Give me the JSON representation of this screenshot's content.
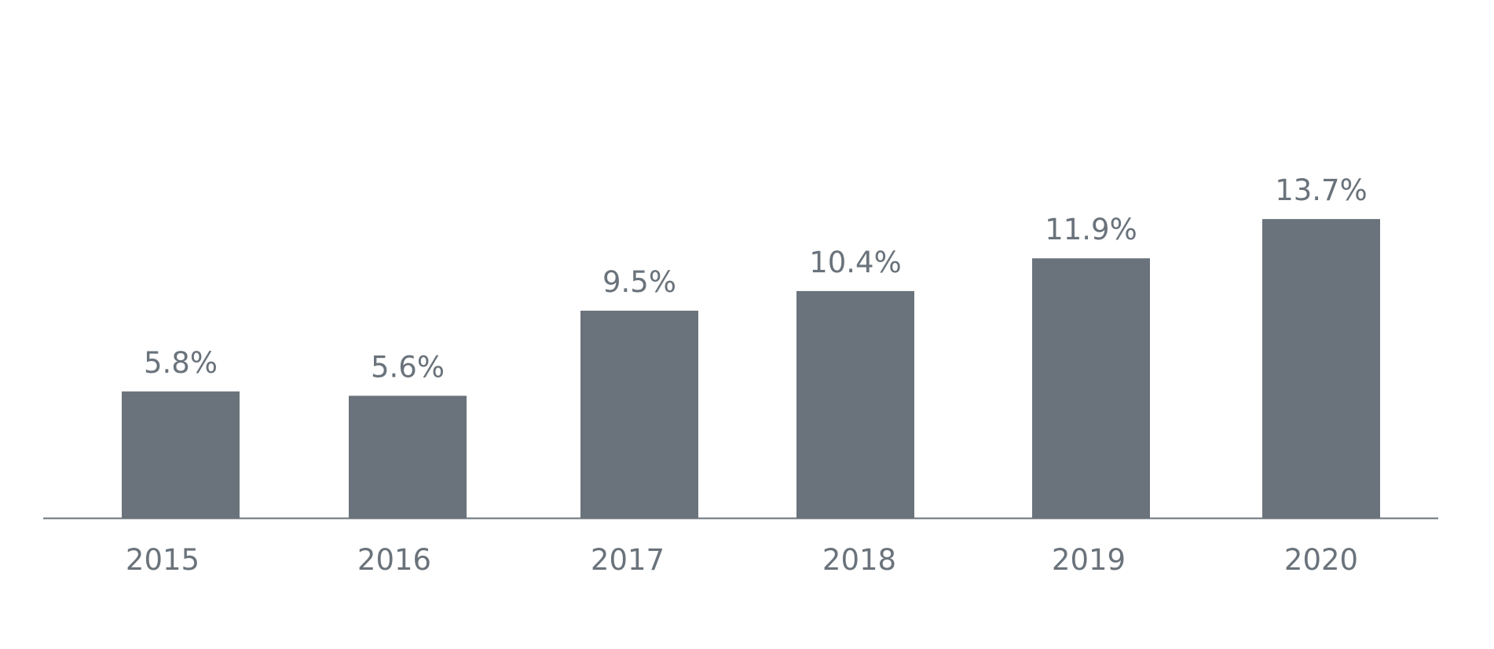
{
  "chart_data": {
    "type": "bar",
    "title": "",
    "xlabel": "",
    "ylabel": "",
    "categories": [
      "2015",
      "2016",
      "2017",
      "2018",
      "2019",
      "2020"
    ],
    "values": [
      5.8,
      5.6,
      9.5,
      10.4,
      11.9,
      13.7
    ],
    "data_labels": [
      "5.8%",
      "5.6%",
      "9.5%",
      "10.4%",
      "11.9%",
      "13.7%"
    ],
    "unit": "%",
    "ylim": [
      0,
      16
    ],
    "grid": false,
    "legend": "none",
    "bar_color": "#6a737b",
    "axis_color": "#6a737b",
    "text_color": "#6a737b"
  }
}
